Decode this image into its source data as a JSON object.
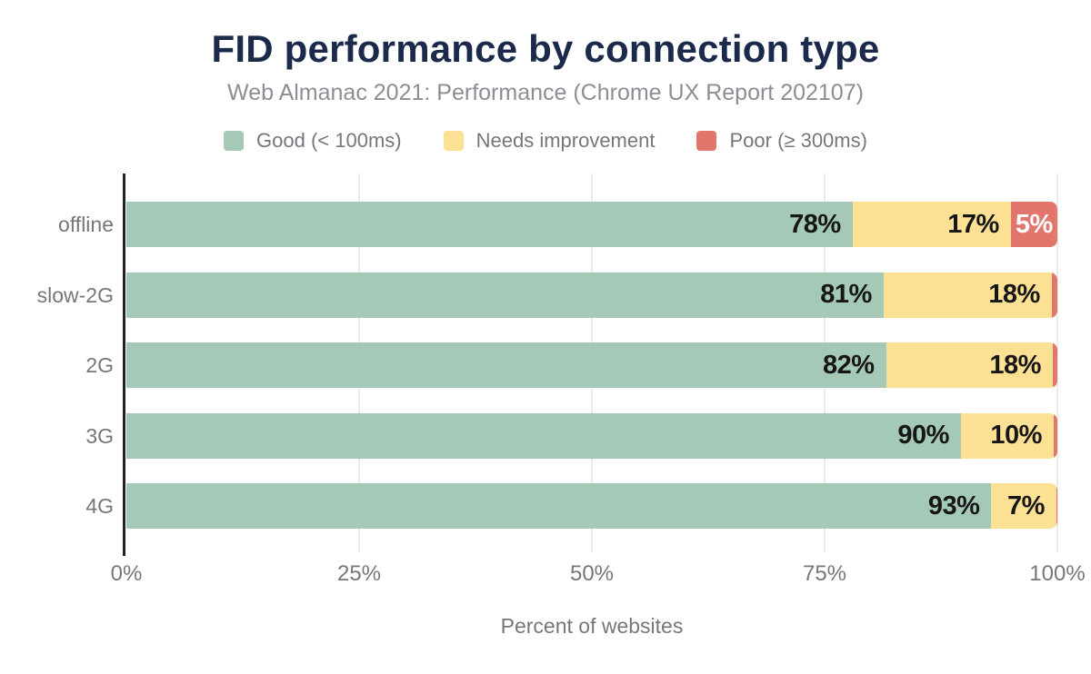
{
  "chart_data": {
    "type": "bar",
    "stacked": true,
    "orientation": "horizontal",
    "title": "FID performance by connection type",
    "subtitle": "Web Almanac 2021: Performance (Chrome UX Report 202107)",
    "categories": [
      "offline",
      "slow-2G",
      "2G",
      "3G",
      "4G"
    ],
    "series": [
      {
        "name": "Good (< 100ms)",
        "color": "#a5c9b7",
        "label_color": "#161616",
        "values": [
          78,
          81,
          82,
          90,
          93
        ]
      },
      {
        "name": "Needs improvement",
        "color": "#fce195",
        "label_color": "#161616",
        "values": [
          17,
          18,
          18,
          10,
          7
        ]
      },
      {
        "name": "Poor (≥ 300ms)",
        "color": "#e2766c",
        "label_color": "#ffffff",
        "values": [
          5,
          0.6,
          0.5,
          0.4,
          0.1
        ]
      }
    ],
    "data_label_format": "{value}%",
    "data_label_min": 5,
    "xlabel": "Percent of websites",
    "xlim": [
      0,
      100
    ],
    "x_ticks": [
      {
        "value": 0,
        "label": "0%"
      },
      {
        "value": 25,
        "label": "25%"
      },
      {
        "value": 50,
        "label": "50%"
      },
      {
        "value": 75,
        "label": "75%"
      },
      {
        "value": 100,
        "label": "100%"
      }
    ],
    "legend_position": "top",
    "grid": "vertical"
  },
  "colors": {
    "background": "#ffffff",
    "title": "#1b2a4a",
    "subtitle": "#8b8e94",
    "axis_text": "#74777c",
    "gridline": "#ebebeb",
    "axis_line": "#222222"
  }
}
